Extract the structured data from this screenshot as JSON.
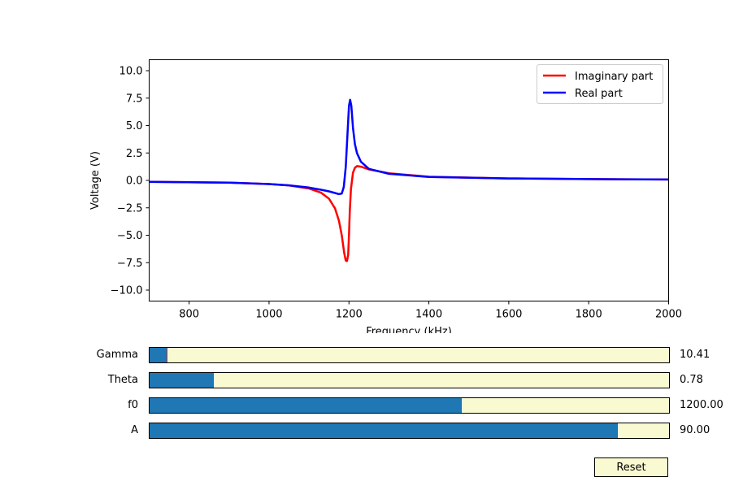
{
  "chart_data": {
    "type": "line",
    "xlabel": "Frequency (kHz)",
    "ylabel": "Voltage (V)",
    "xlim": [
      700,
      2000
    ],
    "ylim": [
      -11,
      11
    ],
    "xticks": [
      800,
      1000,
      1200,
      1400,
      1600,
      1800,
      2000
    ],
    "yticks": [
      -10.0,
      -7.5,
      -5.0,
      -2.5,
      0.0,
      2.5,
      5.0,
      7.5,
      10.0
    ],
    "ytick_labels": [
      "−10.0",
      "−7.5",
      "−5.0",
      "−2.5",
      "0.0",
      "2.5",
      "5.0",
      "7.5",
      "10.0"
    ],
    "grid": false,
    "legend_position": "top-right",
    "series": [
      {
        "name": "Imaginary part",
        "color": "#ff0000",
        "x": [
          700,
          800,
          900,
          1000,
          1050,
          1100,
          1130,
          1150,
          1165,
          1175,
          1182,
          1188,
          1192,
          1195,
          1198,
          1200,
          1202,
          1205,
          1210,
          1215,
          1220,
          1230,
          1250,
          1300,
          1400,
          1600,
          1800,
          2000
        ],
        "y": [
          -0.13,
          -0.16,
          -0.21,
          -0.33,
          -0.45,
          -0.74,
          -1.12,
          -1.67,
          -2.55,
          -3.7,
          -5.0,
          -6.6,
          -7.3,
          -7.35,
          -6.8,
          -5.0,
          -2.8,
          -0.8,
          0.7,
          1.15,
          1.3,
          1.25,
          1.0,
          0.65,
          0.33,
          0.18,
          0.12,
          0.08
        ]
      },
      {
        "name": "Real part",
        "color": "#0000ff",
        "x": [
          700,
          800,
          900,
          1000,
          1050,
          1100,
          1130,
          1150,
          1165,
          1175,
          1182,
          1187,
          1192,
          1196,
          1200,
          1203,
          1206,
          1210,
          1215,
          1220,
          1230,
          1250,
          1300,
          1400,
          1600,
          1800,
          2000
        ],
        "y": [
          -0.13,
          -0.16,
          -0.21,
          -0.33,
          -0.45,
          -0.65,
          -0.85,
          -1.0,
          -1.15,
          -1.25,
          -1.2,
          -0.6,
          1.2,
          4.0,
          6.8,
          7.35,
          6.8,
          4.8,
          3.3,
          2.5,
          1.7,
          1.05,
          0.6,
          0.32,
          0.18,
          0.12,
          0.08
        ]
      }
    ]
  },
  "sliders": [
    {
      "label": "Gamma",
      "value_text": "10.41",
      "fraction": 0.033
    },
    {
      "label": "Theta",
      "value_text": "0.78",
      "fraction": 0.123
    },
    {
      "label": "f0",
      "value_text": "1200.00",
      "fraction": 0.6
    },
    {
      "label": "A",
      "value_text": "90.00",
      "fraction": 0.9
    }
  ],
  "colors": {
    "slider_fill": "#1f77b4",
    "slider_background": "#fafad2",
    "slider_marker": "#d62728"
  },
  "reset_label": "Reset"
}
